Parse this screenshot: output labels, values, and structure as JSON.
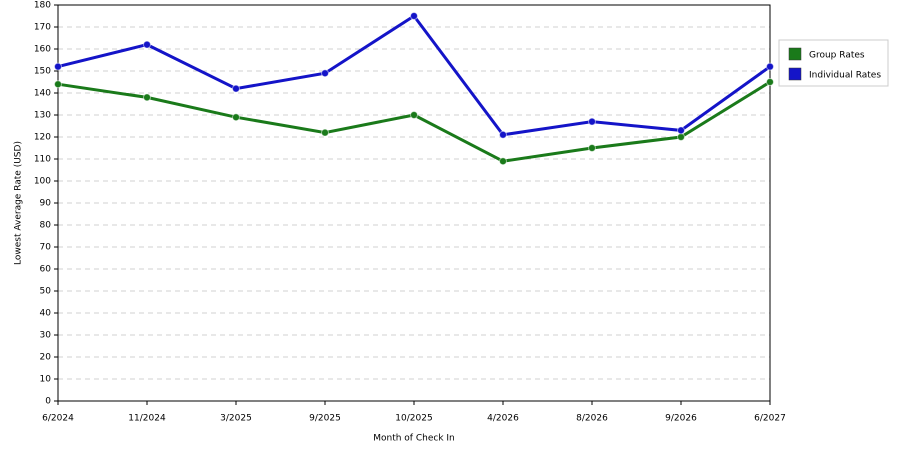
{
  "chart_data": {
    "type": "line",
    "x_label": "Month of Check In",
    "y_label": "Lowest Average Rate (USD)",
    "categories": [
      "6/2024",
      "11/2024",
      "3/2025",
      "9/2025",
      "10/2025",
      "4/2026",
      "8/2026",
      "9/2026",
      "6/2027"
    ],
    "series": [
      {
        "name": "Group Rates",
        "color": "#1a7a1a",
        "values": [
          144,
          138,
          129,
          122,
          130,
          109,
          115,
          120,
          145
        ]
      },
      {
        "name": "Individual Rates",
        "color": "#1414c8",
        "values": [
          152,
          162,
          142,
          149,
          175,
          121,
          127,
          123,
          152
        ]
      }
    ],
    "ylim": [
      0,
      180
    ],
    "yticks": [
      0,
      10,
      20,
      30,
      40,
      50,
      60,
      70,
      80,
      90,
      100,
      110,
      120,
      130,
      140,
      150,
      160,
      170,
      180
    ],
    "grid": true,
    "legend": "right"
  }
}
